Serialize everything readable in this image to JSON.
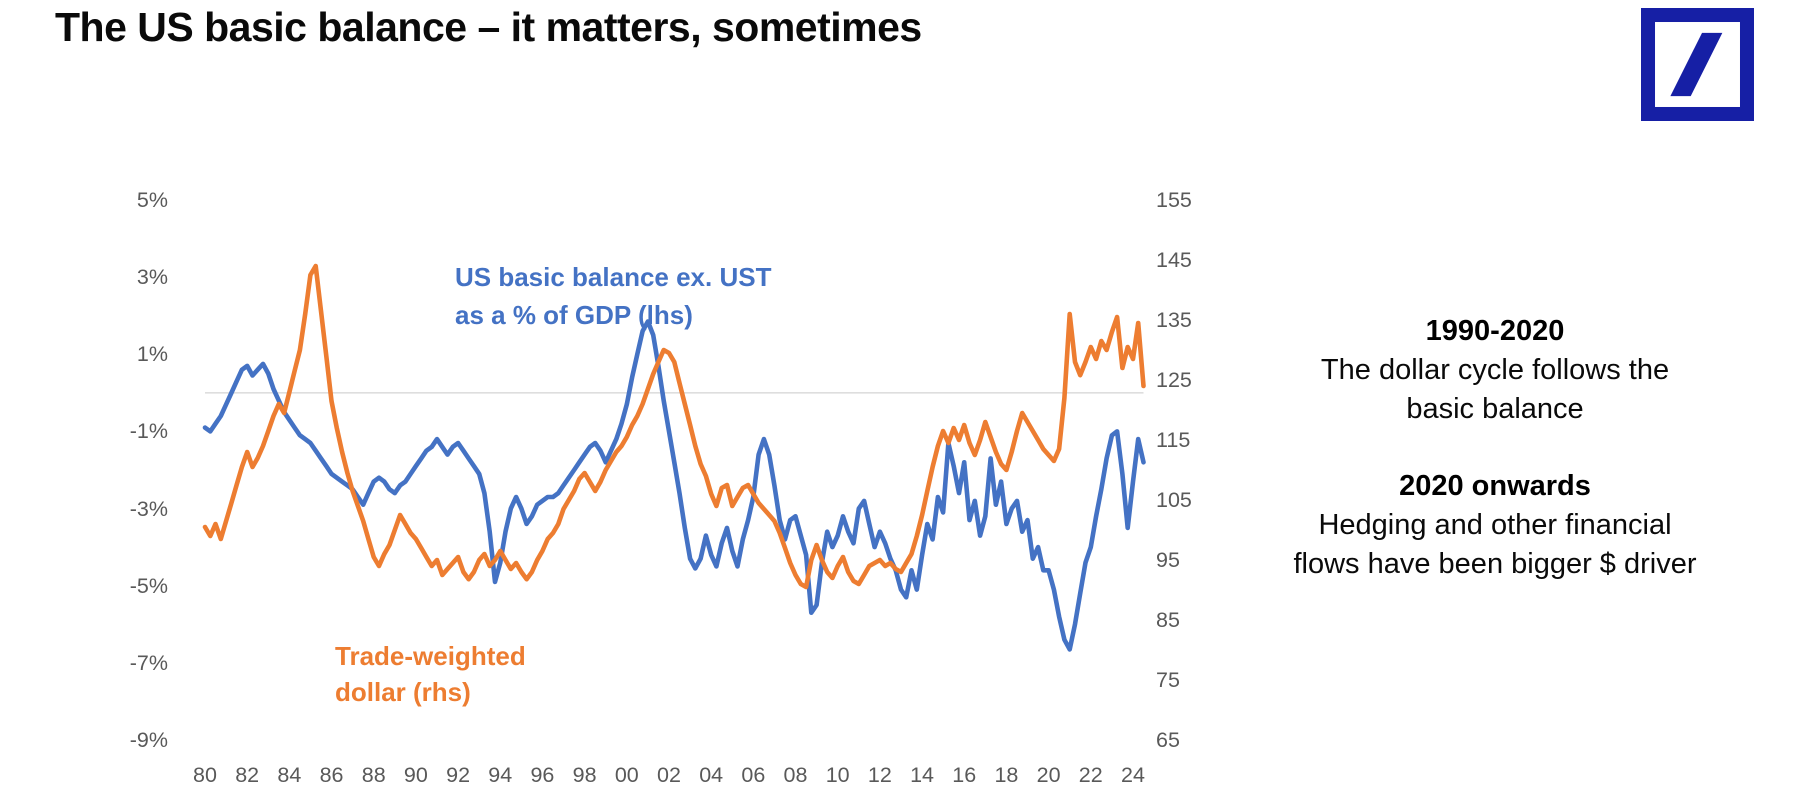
{
  "page": {
    "title": "The US basic balance – it matters, sometimes"
  },
  "logo": {
    "name": "deutsche-bank-logo",
    "color": "#161FA5"
  },
  "annotations": {
    "period1_title": "1990-2020",
    "period1_line1": "The dollar cycle follows the",
    "period1_line2": "basic balance",
    "period2_title": "2020 onwards",
    "period2_line1": "Hedging and other financial",
    "period2_line2": "flows have been bigger $ driver"
  },
  "chart_data": {
    "type": "line",
    "title": "",
    "grid": "single horizontal gridline at left-axis 0%",
    "legend_position": "labels placed on plot",
    "x_start": 1980.0,
    "x_step": 0.25,
    "x_end": 2024.5,
    "left_axis": {
      "label": "US basic balance ex. UST as a % of GDP",
      "ticks": [
        "5%",
        "3%",
        "1%",
        "-1%",
        "-3%",
        "-5%",
        "-7%",
        "-9%"
      ],
      "max": 5,
      "min": -9
    },
    "right_axis": {
      "label": "Trade-weighted dollar",
      "ticks": [
        "155",
        "145",
        "135",
        "125",
        "115",
        "105",
        "95",
        "85",
        "75",
        "65"
      ],
      "max": 155,
      "min": 65
    },
    "x_axis": {
      "ticks": [
        "80",
        "82",
        "84",
        "86",
        "88",
        "90",
        "92",
        "94",
        "96",
        "98",
        "00",
        "02",
        "04",
        "06",
        "08",
        "10",
        "12",
        "14",
        "16",
        "18",
        "20",
        "22",
        "24"
      ],
      "tick_step_years": 2
    },
    "gridline_value_left": 0,
    "series": [
      {
        "name": "US basic balance ex. UST as a % of GDP (lhs)",
        "label_line1": "US basic balance ex. UST",
        "label_line2": "as a % of GDP (lhs)",
        "axis": "left",
        "color": "#4472C4",
        "values": [
          -0.9,
          -1.0,
          -0.8,
          -0.6,
          -0.3,
          0.0,
          0.3,
          0.6,
          0.7,
          0.45,
          0.6,
          0.75,
          0.5,
          0.1,
          -0.2,
          -0.5,
          -0.7,
          -0.9,
          -1.1,
          -1.2,
          -1.3,
          -1.5,
          -1.7,
          -1.9,
          -2.1,
          -2.2,
          -2.3,
          -2.4,
          -2.5,
          -2.7,
          -2.9,
          -2.6,
          -2.3,
          -2.2,
          -2.3,
          -2.5,
          -2.6,
          -2.4,
          -2.3,
          -2.1,
          -1.9,
          -1.7,
          -1.5,
          -1.4,
          -1.2,
          -1.4,
          -1.6,
          -1.4,
          -1.3,
          -1.5,
          -1.7,
          -1.9,
          -2.1,
          -2.6,
          -3.6,
          -4.9,
          -4.4,
          -3.6,
          -3.0,
          -2.7,
          -3.0,
          -3.4,
          -3.2,
          -2.9,
          -2.8,
          -2.7,
          -2.7,
          -2.6,
          -2.4,
          -2.2,
          -2.0,
          -1.8,
          -1.6,
          -1.4,
          -1.3,
          -1.5,
          -1.8,
          -1.5,
          -1.2,
          -0.8,
          -0.3,
          0.4,
          1.0,
          1.6,
          1.85,
          1.5,
          0.7,
          -0.2,
          -1.0,
          -1.8,
          -2.6,
          -3.5,
          -4.3,
          -4.55,
          -4.3,
          -3.7,
          -4.2,
          -4.5,
          -3.9,
          -3.5,
          -4.1,
          -4.5,
          -3.8,
          -3.3,
          -2.7,
          -1.6,
          -1.2,
          -1.6,
          -2.4,
          -3.3,
          -3.8,
          -3.3,
          -3.2,
          -3.7,
          -4.2,
          -5.7,
          -5.5,
          -4.4,
          -3.6,
          -4.0,
          -3.7,
          -3.2,
          -3.6,
          -3.9,
          -3.0,
          -2.8,
          -3.4,
          -4.0,
          -3.6,
          -3.9,
          -4.3,
          -4.6,
          -5.1,
          -5.3,
          -4.6,
          -5.1,
          -4.2,
          -3.4,
          -3.8,
          -2.7,
          -3.1,
          -1.3,
          -1.9,
          -2.6,
          -1.8,
          -3.3,
          -2.8,
          -3.7,
          -3.2,
          -1.7,
          -2.9,
          -2.3,
          -3.4,
          -3.0,
          -2.8,
          -3.6,
          -3.3,
          -4.3,
          -4.0,
          -4.6,
          -4.6,
          -5.1,
          -5.8,
          -6.4,
          -6.65,
          -6.0,
          -5.2,
          -4.4,
          -4.0,
          -3.2,
          -2.5,
          -1.7,
          -1.1,
          -1.0,
          -2.1,
          -3.5,
          -2.3,
          -1.2,
          -1.8
        ]
      },
      {
        "name": "Trade-weighted dollar (rhs)",
        "label_line1": "Trade-weighted",
        "label_line2": "dollar (rhs)",
        "axis": "right",
        "color": "#ED7D31",
        "values": [
          100.5,
          99.0,
          101.0,
          98.5,
          101.5,
          104.5,
          107.5,
          110.5,
          113.0,
          110.5,
          112.0,
          114.0,
          116.5,
          119.0,
          121.0,
          119.5,
          123.0,
          126.5,
          130.0,
          136.0,
          142.5,
          144.0,
          136.5,
          129.0,
          121.5,
          117.0,
          113.0,
          109.5,
          106.5,
          104.0,
          101.5,
          98.5,
          95.5,
          94.0,
          96.0,
          97.5,
          100.0,
          102.5,
          101.0,
          99.5,
          98.5,
          97.0,
          95.5,
          94.0,
          95.0,
          92.5,
          93.5,
          94.5,
          95.5,
          93.0,
          91.8,
          93.0,
          95.0,
          96.0,
          94.0,
          95.0,
          96.5,
          95.0,
          93.5,
          94.5,
          93.0,
          91.8,
          93.0,
          95.0,
          96.5,
          98.5,
          99.5,
          101.0,
          103.5,
          105.0,
          106.5,
          108.5,
          109.5,
          108.0,
          106.5,
          108.0,
          110.0,
          111.5,
          113.0,
          114.0,
          115.5,
          117.5,
          119.0,
          121.0,
          123.5,
          126.0,
          128.0,
          130.0,
          129.5,
          128.0,
          124.5,
          121.0,
          117.5,
          114.0,
          111.0,
          109.0,
          106.0,
          104.0,
          107.0,
          107.5,
          104.0,
          105.5,
          107.0,
          107.5,
          106.0,
          104.5,
          103.5,
          102.5,
          101.5,
          99.5,
          97.0,
          94.5,
          92.5,
          91.0,
          90.5,
          95.0,
          97.5,
          95.0,
          93.0,
          92.0,
          94.0,
          95.5,
          93.0,
          91.5,
          91.0,
          92.5,
          94.0,
          94.5,
          95.0,
          94.0,
          94.5,
          93.5,
          93.0,
          94.5,
          96.0,
          99.0,
          102.5,
          106.5,
          110.5,
          114.0,
          116.5,
          114.5,
          117.0,
          115.0,
          117.5,
          114.5,
          112.5,
          115.0,
          118.0,
          115.5,
          113.0,
          111.0,
          110.0,
          113.0,
          116.5,
          119.5,
          118.0,
          116.5,
          115.0,
          113.5,
          112.5,
          111.5,
          113.5,
          122.0,
          136.0,
          128.0,
          125.8,
          128.0,
          130.5,
          128.5,
          131.5,
          130.0,
          133.0,
          135.5,
          127.0,
          130.5,
          128.5,
          134.5,
          124.0
        ]
      }
    ]
  }
}
